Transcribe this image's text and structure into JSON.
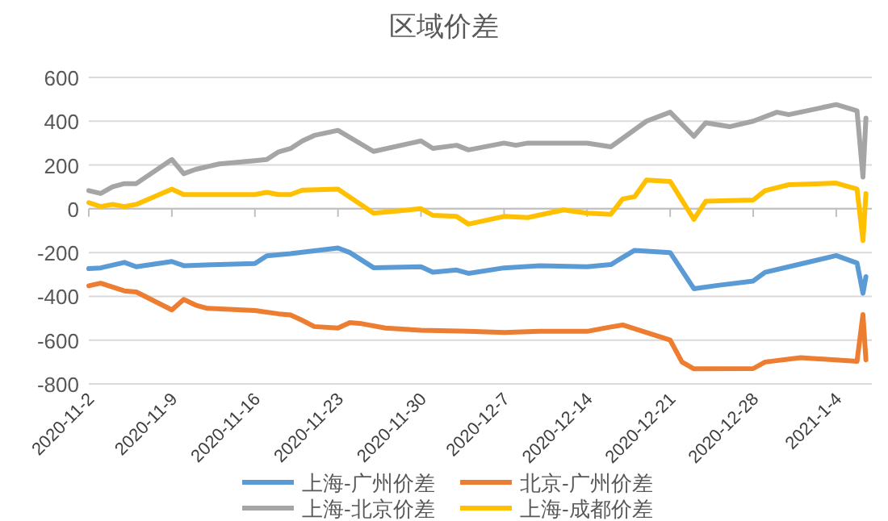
{
  "chart_data": {
    "type": "line",
    "title": "区域价差",
    "ylim": [
      -800,
      600
    ],
    "yticks": [
      -800,
      -600,
      -400,
      -200,
      0,
      200,
      400,
      600
    ],
    "xlim": [
      "2020-11-02",
      "2021-01-07"
    ],
    "xticks": [
      {
        "value": "2020-11-02",
        "label": "2020-11-2"
      },
      {
        "value": "2020-11-09",
        "label": "2020-11-9"
      },
      {
        "value": "2020-11-16",
        "label": "2020-11-16"
      },
      {
        "value": "2020-11-23",
        "label": "2020-11-23"
      },
      {
        "value": "2020-11-30",
        "label": "2020-11-30"
      },
      {
        "value": "2020-12-07",
        "label": "2020-12-7"
      },
      {
        "value": "2020-12-14",
        "label": "2020-12-14"
      },
      {
        "value": "2020-12-21",
        "label": "2020-12-21"
      },
      {
        "value": "2020-12-28",
        "label": "2020-12-28"
      },
      {
        "value": "2021-01-04",
        "label": "2021-1-4"
      }
    ],
    "grid": "y",
    "legend": "bottom",
    "marker": "none",
    "line_style": "solid",
    "series": [
      {
        "name": "上海-广州价差",
        "color": "#5b9bd5",
        "x": [
          "2020-11-02",
          "2020-11-03",
          "2020-11-05",
          "2020-11-06",
          "2020-11-09",
          "2020-11-10",
          "2020-11-13",
          "2020-11-16",
          "2020-11-17",
          "2020-11-19",
          "2020-11-23",
          "2020-11-24",
          "2020-11-26",
          "2020-11-30",
          "2020-12-01",
          "2020-12-03",
          "2020-12-04",
          "2020-12-07",
          "2020-12-10",
          "2020-12-14",
          "2020-12-16",
          "2020-12-18",
          "2020-12-21",
          "2020-12-23",
          "2020-12-25",
          "2020-12-28",
          "2020-12-29",
          "2020-12-31",
          "2021-01-04",
          "2021-01-05T18:00",
          "2021-01-06T06:00",
          "2021-01-06T12:00"
        ],
        "values": [
          -273,
          -270,
          -245,
          -265,
          -241,
          -260,
          -255,
          -250,
          -215,
          -205,
          -179,
          -200,
          -269,
          -265,
          -290,
          -280,
          -295,
          -270,
          -260,
          -265,
          -255,
          -190,
          -200,
          -365,
          -350,
          -330,
          -290,
          -265,
          -214,
          -248,
          -386,
          -310
        ]
      },
      {
        "name": "北京-广州价差",
        "color": "#ed7d31",
        "x": [
          "2020-11-02",
          "2020-11-03",
          "2020-11-05",
          "2020-11-06",
          "2020-11-09",
          "2020-11-10",
          "2020-11-11",
          "2020-11-12",
          "2020-11-16",
          "2020-11-18",
          "2020-11-19",
          "2020-11-20",
          "2020-11-21",
          "2020-11-23",
          "2020-11-24",
          "2020-11-25",
          "2020-11-27",
          "2020-11-30",
          "2020-12-04",
          "2020-12-07",
          "2020-12-10",
          "2020-12-14",
          "2020-12-16",
          "2020-12-17",
          "2020-12-21",
          "2020-12-22",
          "2020-12-23",
          "2020-12-28",
          "2020-12-29",
          "2021-01-01",
          "2021-01-05T18:00",
          "2021-01-06T06:00",
          "2021-01-06T12:00"
        ],
        "values": [
          -352,
          -340,
          -375,
          -380,
          -462,
          -414,
          -440,
          -455,
          -465,
          -480,
          -485,
          -510,
          -538,
          -545,
          -520,
          -525,
          -545,
          -555,
          -560,
          -565,
          -560,
          -560,
          -540,
          -531,
          -600,
          -700,
          -731,
          -730,
          -700,
          -680,
          -697,
          -483,
          -690
        ]
      },
      {
        "name": "上海-北京价差",
        "color": "#a5a5a5",
        "x": [
          "2020-11-02",
          "2020-11-03",
          "2020-11-04",
          "2020-11-05",
          "2020-11-06",
          "2020-11-09",
          "2020-11-10",
          "2020-11-11",
          "2020-11-13",
          "2020-11-16",
          "2020-11-17",
          "2020-11-18",
          "2020-11-19",
          "2020-11-20",
          "2020-11-21",
          "2020-11-23",
          "2020-11-26",
          "2020-11-30",
          "2020-12-01",
          "2020-12-03",
          "2020-12-04",
          "2020-12-07",
          "2020-12-08",
          "2020-12-09",
          "2020-12-14",
          "2020-12-16",
          "2020-12-19",
          "2020-12-21",
          "2020-12-23",
          "2020-12-24",
          "2020-12-26",
          "2020-12-28",
          "2020-12-30",
          "2020-12-31",
          "2021-01-04",
          "2021-01-05T18:00",
          "2021-01-06T06:00",
          "2021-01-06T12:00"
        ],
        "values": [
          83,
          70,
          100,
          115,
          115,
          225,
          160,
          180,
          205,
          220,
          225,
          260,
          275,
          310,
          335,
          358,
          262,
          310,
          276,
          290,
          269,
          300,
          290,
          300,
          300,
          283,
          400,
          441,
          331,
          393,
          375,
          400,
          441,
          430,
          476,
          448,
          145,
          414
        ]
      },
      {
        "name": "上海-成都价差",
        "color": "#ffc000",
        "x": [
          "2020-11-02",
          "2020-11-03",
          "2020-11-04",
          "2020-11-05",
          "2020-11-06",
          "2020-11-09",
          "2020-11-10",
          "2020-11-16",
          "2020-11-17",
          "2020-11-18",
          "2020-11-19",
          "2020-11-20",
          "2020-11-23",
          "2020-11-26",
          "2020-11-30",
          "2020-12-01",
          "2020-12-03",
          "2020-12-04",
          "2020-12-07",
          "2020-12-09",
          "2020-12-12",
          "2020-12-14",
          "2020-12-16",
          "2020-12-17",
          "2020-12-18",
          "2020-12-19",
          "2020-12-21",
          "2020-12-23",
          "2020-12-24",
          "2020-12-28",
          "2020-12-29",
          "2020-12-31",
          "2021-01-04",
          "2021-01-05T18:00",
          "2021-01-06T06:00",
          "2021-01-06T12:00"
        ],
        "values": [
          28,
          10,
          20,
          10,
          20,
          90,
          65,
          65,
          75,
          65,
          65,
          85,
          90,
          -20,
          0,
          -30,
          -35,
          -70,
          -35,
          -40,
          -5,
          -20,
          -25,
          45,
          55,
          131,
          125,
          -48,
          34,
          40,
          83,
          110,
          117,
          90,
          -145,
          69
        ]
      }
    ]
  }
}
